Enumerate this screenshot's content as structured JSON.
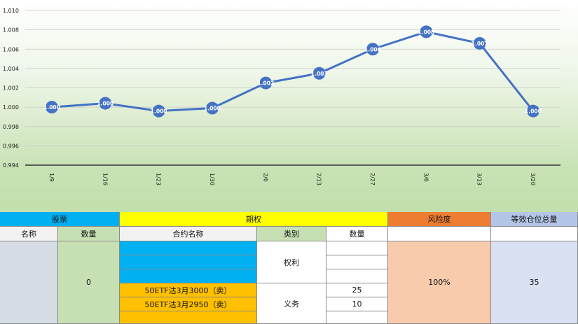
{
  "chart_data": {
    "type": "line",
    "categories": [
      "1/9",
      "1/16",
      "1/23",
      "1/30",
      "2/6",
      "2/13",
      "2/27",
      "3/6",
      "3/13",
      "3/20"
    ],
    "values": [
      1.0,
      1.0004,
      0.9996,
      0.9999,
      1.0025,
      1.0035,
      1.006,
      1.0078,
      1.0066,
      0.9996
    ],
    "data_labels": [
      "1.000",
      "1.000",
      "1.000",
      "1.000",
      "1.002",
      "1.003",
      "1.006",
      "1.008",
      "1.007",
      "1.000"
    ],
    "ylim": [
      0.994,
      1.01
    ],
    "yticks": [
      "0.994",
      "0.996",
      "0.998",
      "1.000",
      "1.002",
      "1.004",
      "1.006",
      "1.008",
      "1.010"
    ],
    "grid": true,
    "line_color": "#4472c4",
    "marker_color": "#4472c4"
  },
  "table": {
    "stock": {
      "header": "股票",
      "col_name": "名称",
      "col_qty": "数量",
      "qty_value": "0"
    },
    "option": {
      "header": "期权",
      "col_contract": "合约名称",
      "col_type": "类别",
      "col_qty": "数量",
      "type_right": "权利",
      "type_obligation": "义务",
      "rows": [
        {
          "contract": "",
          "qty": ""
        },
        {
          "contract": "",
          "qty": ""
        },
        {
          "contract": "",
          "qty": ""
        },
        {
          "contract": "50ETF沽3月3000（卖）",
          "qty": "25"
        },
        {
          "contract": "50ETF沽3月2950（卖）",
          "qty": "10"
        },
        {
          "contract": "",
          "qty": ""
        }
      ]
    },
    "risk": {
      "header": "风险度",
      "value": "100%"
    },
    "position": {
      "header": "等效仓位总量",
      "value": "35"
    },
    "colors": {
      "stock_header": "#00b0f0",
      "option_header": "#ffff00",
      "risk_header": "#ed7d31",
      "position_header": "#b4c6e7",
      "qty_green": "#c6e0b4",
      "name_gray": "#d6dce4",
      "contract_blue": "#00b0f0",
      "contract_orange": "#ffc000",
      "risk_body": "#f8cbad",
      "position_body": "#d9e1f2",
      "subheader_gray": "#f2f2f2"
    }
  }
}
